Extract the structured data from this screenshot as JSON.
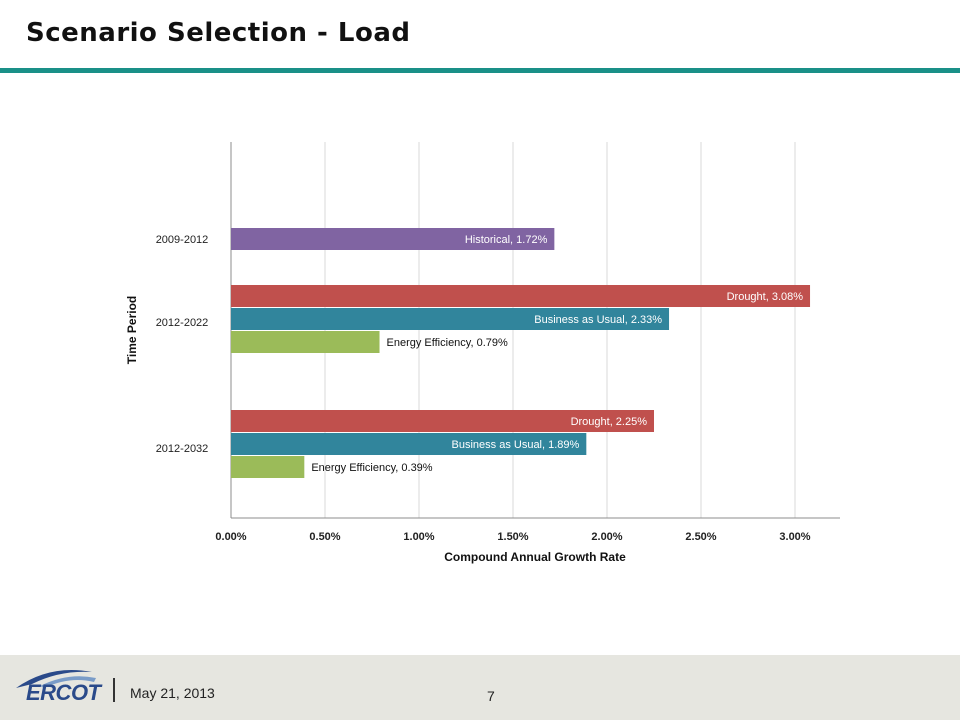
{
  "slide": {
    "title": "Scenario Selection - Load",
    "date": "May 21, 2013",
    "page_number": "7",
    "logo_text": "ERCOT"
  },
  "colors": {
    "title_rule": "#1a9088",
    "historical": "#8064a2",
    "drought": "#c0504d",
    "business_as_usual": "#31859c",
    "energy_efficiency": "#9bbb59",
    "grid": "#d9d9d9",
    "footer": "#e6e6e0"
  },
  "chart_data": {
    "type": "bar",
    "orientation": "horizontal",
    "xlabel": "Compound Annual Growth Rate",
    "ylabel": "Time Period",
    "xlim": [
      0,
      3.25
    ],
    "x_ticks": [
      0,
      0.5,
      1.0,
      1.5,
      2.0,
      2.5,
      3.0
    ],
    "x_tick_labels": [
      "0.00%",
      "0.50%",
      "1.00%",
      "1.50%",
      "2.00%",
      "2.50%",
      "3.00%"
    ],
    "grid": "vertical",
    "legend": "none",
    "groups": [
      {
        "category": "2009-2012",
        "bars": [
          {
            "label": "Historical, 1.72%",
            "value": 1.72,
            "color": "#8064a2",
            "label_position": "inside"
          }
        ]
      },
      {
        "category": "2012-2022",
        "bars": [
          {
            "label": "Drought, 3.08%",
            "value": 3.08,
            "color": "#c0504d",
            "label_position": "inside"
          },
          {
            "label": "Business as Usual, 2.33%",
            "value": 2.33,
            "color": "#31859c",
            "label_position": "inside"
          },
          {
            "label": "Energy Efficiency, 0.79%",
            "value": 0.79,
            "color": "#9bbb59",
            "label_position": "outside"
          }
        ]
      },
      {
        "category": "2012-2032",
        "bars": [
          {
            "label": "Drought, 2.25%",
            "value": 2.25,
            "color": "#c0504d",
            "label_position": "inside"
          },
          {
            "label": "Business as Usual, 1.89%",
            "value": 1.89,
            "color": "#31859c",
            "label_position": "inside"
          },
          {
            "label": "Energy Efficiency, 0.39%",
            "value": 0.39,
            "color": "#9bbb59",
            "label_position": "outside"
          }
        ]
      }
    ]
  }
}
